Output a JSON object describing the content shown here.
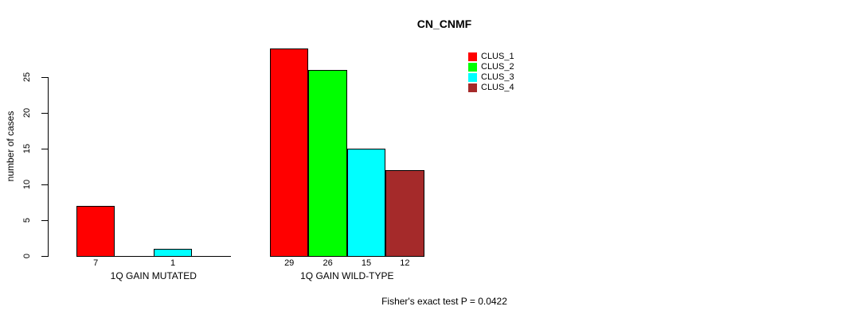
{
  "chart_data": {
    "type": "bar",
    "title": "CN_CNMF",
    "ylabel": "number of cases",
    "xlabel": "",
    "yticks": [
      0,
      5,
      10,
      15,
      20,
      25
    ],
    "ylim": [
      0,
      29
    ],
    "grid": false,
    "legend_position": "top-right",
    "categories": [
      "1Q GAIN MUTATED",
      "1Q GAIN WILD-TYPE"
    ],
    "series": [
      {
        "name": "CLUS_1",
        "color": "#FF0000",
        "values": [
          7,
          29
        ]
      },
      {
        "name": "CLUS_2",
        "color": "#00FF00",
        "values": [
          0,
          26
        ]
      },
      {
        "name": "CLUS_3",
        "color": "#00FFFF",
        "values": [
          1,
          15
        ]
      },
      {
        "name": "CLUS_4",
        "color": "#A52A2A",
        "values": [
          0,
          12
        ]
      }
    ],
    "bar_value_labels": [
      [
        7,
        1
      ],
      [
        29,
        26,
        15,
        12
      ]
    ],
    "zero_bars_hidden": true,
    "annotation": "Fisher's exact test P = 0.0422"
  }
}
